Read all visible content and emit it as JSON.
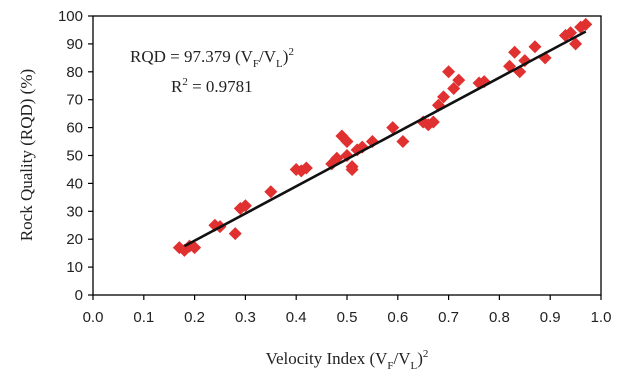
{
  "chart_data": {
    "type": "scatter",
    "title": "",
    "xlabel_parts": [
      "Velocity Index (V",
      "F",
      "/V",
      "L",
      ")",
      "2"
    ],
    "ylabel": "Rock Quality (RQD) (%)",
    "xlim": [
      0.0,
      1.0
    ],
    "ylim": [
      0,
      100
    ],
    "x_ticks": [
      "0.0",
      "0.1",
      "0.2",
      "0.3",
      "0.4",
      "0.5",
      "0.6",
      "0.7",
      "0.8",
      "0.9",
      "1.0"
    ],
    "y_ticks": [
      "0",
      "10",
      "20",
      "30",
      "40",
      "50",
      "60",
      "70",
      "80",
      "90",
      "100"
    ],
    "grid": false,
    "marker": "diamond",
    "marker_color": "#e03030",
    "fit_line_color": "#111111",
    "annotation": {
      "equation_parts": [
        "RQD = 97.379 (V",
        "F",
        "/V",
        "L",
        ")",
        "2"
      ],
      "r2_parts": [
        "R",
        "2",
        " = 0.9781"
      ]
    },
    "fit": {
      "coefficient": 97.379,
      "x_start": 0.18,
      "x_end": 0.97
    },
    "points": [
      {
        "x": 0.17,
        "y": 17
      },
      {
        "x": 0.18,
        "y": 16
      },
      {
        "x": 0.19,
        "y": 17.5
      },
      {
        "x": 0.2,
        "y": 17
      },
      {
        "x": 0.24,
        "y": 25
      },
      {
        "x": 0.25,
        "y": 24.5
      },
      {
        "x": 0.28,
        "y": 22
      },
      {
        "x": 0.29,
        "y": 31
      },
      {
        "x": 0.3,
        "y": 32
      },
      {
        "x": 0.35,
        "y": 37
      },
      {
        "x": 0.4,
        "y": 45
      },
      {
        "x": 0.41,
        "y": 44.5
      },
      {
        "x": 0.42,
        "y": 45.5
      },
      {
        "x": 0.47,
        "y": 47
      },
      {
        "x": 0.48,
        "y": 49
      },
      {
        "x": 0.49,
        "y": 57
      },
      {
        "x": 0.5,
        "y": 55
      },
      {
        "x": 0.5,
        "y": 50
      },
      {
        "x": 0.51,
        "y": 46
      },
      {
        "x": 0.51,
        "y": 45
      },
      {
        "x": 0.52,
        "y": 52
      },
      {
        "x": 0.53,
        "y": 53
      },
      {
        "x": 0.55,
        "y": 55
      },
      {
        "x": 0.59,
        "y": 60
      },
      {
        "x": 0.61,
        "y": 55
      },
      {
        "x": 0.65,
        "y": 62
      },
      {
        "x": 0.66,
        "y": 61
      },
      {
        "x": 0.67,
        "y": 62
      },
      {
        "x": 0.68,
        "y": 68
      },
      {
        "x": 0.69,
        "y": 71
      },
      {
        "x": 0.7,
        "y": 80
      },
      {
        "x": 0.71,
        "y": 74
      },
      {
        "x": 0.72,
        "y": 77
      },
      {
        "x": 0.76,
        "y": 76
      },
      {
        "x": 0.77,
        "y": 76.5
      },
      {
        "x": 0.82,
        "y": 82
      },
      {
        "x": 0.83,
        "y": 87
      },
      {
        "x": 0.84,
        "y": 80
      },
      {
        "x": 0.85,
        "y": 84
      },
      {
        "x": 0.87,
        "y": 89
      },
      {
        "x": 0.89,
        "y": 85
      },
      {
        "x": 0.93,
        "y": 93
      },
      {
        "x": 0.94,
        "y": 94
      },
      {
        "x": 0.95,
        "y": 90
      },
      {
        "x": 0.96,
        "y": 96
      },
      {
        "x": 0.97,
        "y": 97
      }
    ]
  }
}
